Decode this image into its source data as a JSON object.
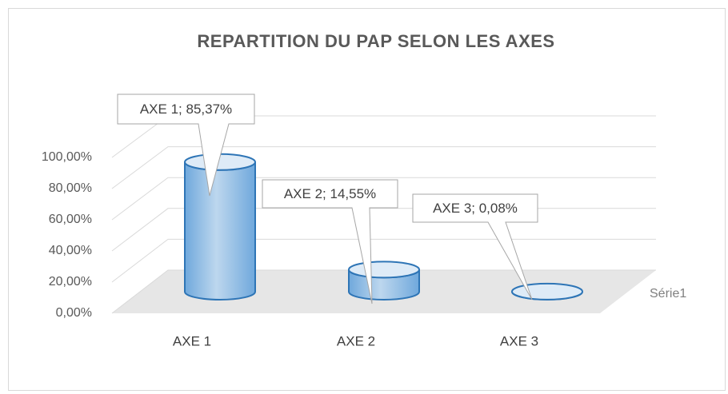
{
  "chart_data": {
    "type": "bar",
    "title": "REPARTITION DU PAP SELON LES AXES",
    "categories": [
      "AXE 1",
      "AXE 2",
      "AXE 3"
    ],
    "series": [
      {
        "name": "Série1",
        "color": "#9dc3e6",
        "values": [
          85.37,
          14.55,
          0.08
        ],
        "value_labels": [
          "AXE 1; 85,37%",
          "AXE 2; 14,55%",
          "AXE 3; 0,08%"
        ]
      }
    ],
    "ylim": [
      0,
      100
    ],
    "yticks": [
      {
        "value": 0,
        "label": "0,00%"
      },
      {
        "value": 20,
        "label": "20,00%"
      },
      {
        "value": 40,
        "label": "40,00%"
      },
      {
        "value": 60,
        "label": "60,00%"
      },
      {
        "value": 80,
        "label": "80,00%"
      },
      {
        "value": 100,
        "label": "100,00%"
      }
    ],
    "grid": true
  }
}
